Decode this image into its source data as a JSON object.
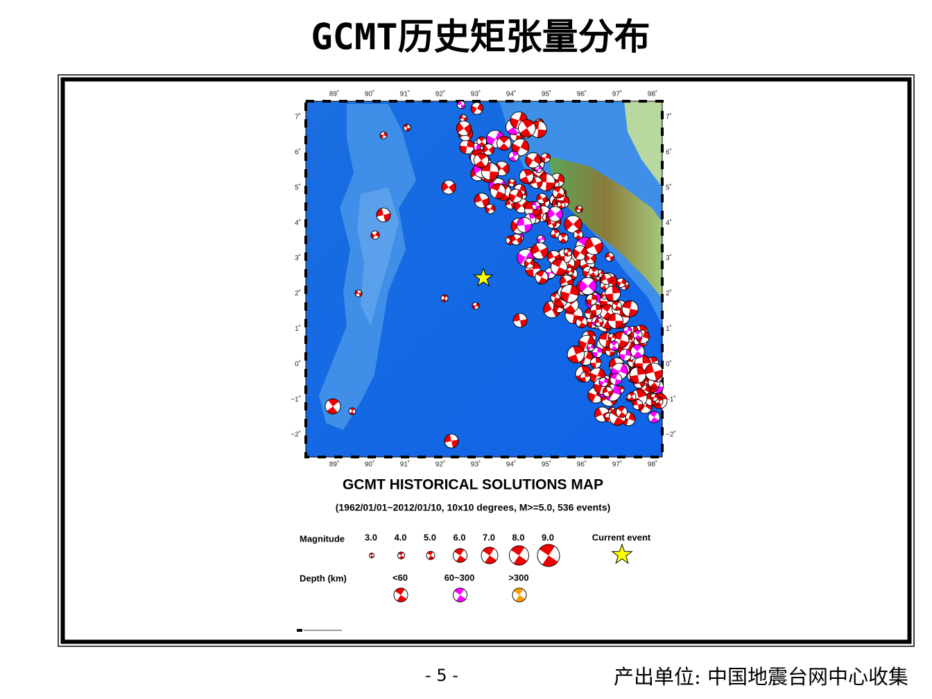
{
  "title": "GCMT历史矩张量分布",
  "map": {
    "lon_labels": [
      "89˚",
      "90˚",
      "91˚",
      "92˚",
      "93˚",
      "94˚",
      "95˚",
      "96˚",
      "97˚",
      "98˚"
    ],
    "lat_labels": [
      "7˚",
      "6˚",
      "5˚",
      "4˚",
      "3˚",
      "2˚",
      "1˚",
      "0˚",
      "−1˚",
      "−2˚"
    ],
    "title": "GCMT HISTORICAL SOLUTIONS MAP",
    "subtitle": "(1962/01/01~2012/01/10, 10x10 degrees, M>=5.0, 536 events)",
    "legend": {
      "magnitude_label": "Magnitude",
      "magnitudes": [
        "3.0",
        "4.0",
        "5.0",
        "6.0",
        "7.0",
        "8.0",
        "9.0"
      ],
      "current_event": "Current event",
      "depth_label": "Depth (km)",
      "depths": [
        "<60",
        "60~300",
        ">300"
      ]
    }
  },
  "footer": {
    "page": "- 5 -",
    "source": "产出单位: 中国地震台网中心收集"
  }
}
